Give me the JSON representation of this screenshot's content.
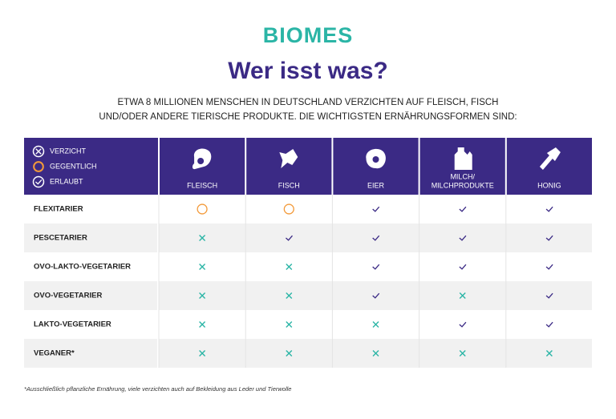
{
  "header": {
    "logo": "BIOMES",
    "title": "Wer isst was?",
    "subtitle": [
      "ETWA 8 MILLIONEN MENSCHEN IN DEUTSCHLAND VERZICHTEN AUF FLEISCH, FISCH",
      "UND/ODER ANDERE TIERISCHE PRODUKTE. DIE WICHTIGSTEN ERNÄHRUNGSFORMEN SIND:"
    ]
  },
  "legend": [
    "VERZICHT",
    "GEGENTLICH",
    "ERLAUBT"
  ],
  "table": {
    "columns": [
      [
        "FLEISCH"
      ],
      [
        "FISCH"
      ],
      [
        "EIER"
      ],
      [
        "MILCH/",
        "MILCHPRODUKTE"
      ],
      [
        "HONIG"
      ]
    ],
    "rows": [
      {
        "label": "FLEXITARIER",
        "cells": [
          1,
          1,
          2,
          2,
          2
        ]
      },
      {
        "label": "PESCETARIER",
        "cells": [
          0,
          2,
          2,
          2,
          2
        ]
      },
      {
        "label": "OVO-LAKTO-VEGETARIER",
        "cells": [
          0,
          0,
          2,
          2,
          2
        ]
      },
      {
        "label": "OVO-VEGETARIER",
        "cells": [
          0,
          0,
          2,
          0,
          2
        ]
      },
      {
        "label": "LAKTO-VEGETARIER",
        "cells": [
          0,
          0,
          0,
          2,
          2
        ]
      },
      {
        "label": "VEGANER*",
        "cells": [
          0,
          0,
          0,
          0,
          0
        ]
      }
    ]
  },
  "footnote": "*Ausschließlich pflanzliche Ernährung, viele verzichten auch auf Bekleidung aus Leder und Tierwolle"
}
